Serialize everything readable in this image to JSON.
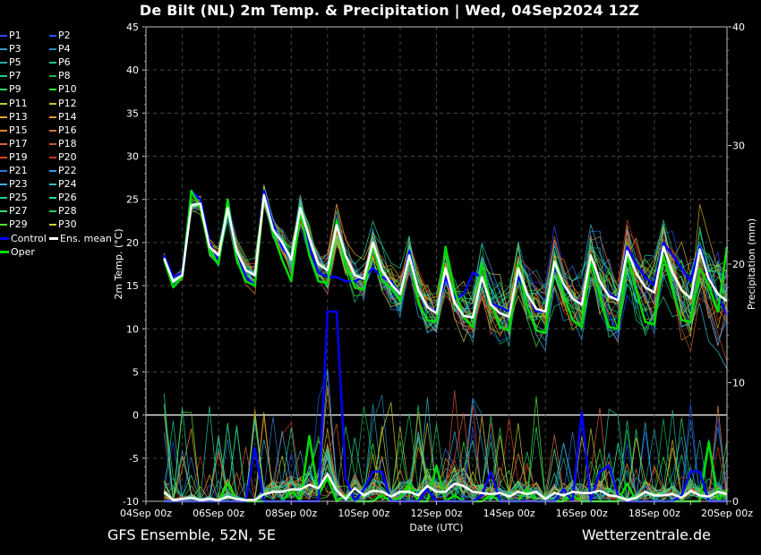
{
  "title": "De Bilt  (NL)  2m Temp. & Precipitation | Wed, 04Sep2024 12Z",
  "footer_left": "GFS Ensemble, 52N, 5E",
  "footer_right": "Wetterzentrale.de",
  "legend": [
    {
      "label": "P1",
      "color": "#3344ff"
    },
    {
      "label": "P2",
      "color": "#2255ff"
    },
    {
      "label": "P3",
      "color": "#3399cc"
    },
    {
      "label": "P4",
      "color": "#2288bb"
    },
    {
      "label": "P5",
      "color": "#22aaaa"
    },
    {
      "label": "P6",
      "color": "#22bb99"
    },
    {
      "label": "P7",
      "color": "#22cc88"
    },
    {
      "label": "P8",
      "color": "#11bb55"
    },
    {
      "label": "P9",
      "color": "#22dd66"
    },
    {
      "label": "P10",
      "color": "#33ee33"
    },
    {
      "label": "P11",
      "color": "#bbcc33"
    },
    {
      "label": "P12",
      "color": "#ccbb33"
    },
    {
      "label": "P13",
      "color": "#ddaa22"
    },
    {
      "label": "P14",
      "color": "#ee9922"
    },
    {
      "label": "P15",
      "color": "#dd8833"
    },
    {
      "label": "P16",
      "color": "#cc7744"
    },
    {
      "label": "P17",
      "color": "#dd6633"
    },
    {
      "label": "P18",
      "color": "#cc5533"
    },
    {
      "label": "P19",
      "color": "#dd4422"
    },
    {
      "label": "P20",
      "color": "#cc3322"
    },
    {
      "label": "P21",
      "color": "#3377dd"
    },
    {
      "label": "P22",
      "color": "#3399ee"
    },
    {
      "label": "P23",
      "color": "#44aadd"
    },
    {
      "label": "P24",
      "color": "#33bbcc"
    },
    {
      "label": "P25",
      "color": "#22ccaa"
    },
    {
      "label": "P26",
      "color": "#22dd99"
    },
    {
      "label": "P27",
      "color": "#33dd77"
    },
    {
      "label": "P28",
      "color": "#22cc55"
    },
    {
      "label": "P29",
      "color": "#55ee33"
    },
    {
      "label": "P30",
      "color": "#cccc33"
    },
    {
      "label": "Control",
      "color": "#0000ff"
    },
    {
      "label": "Ens. mean",
      "color": "#ffffff"
    },
    {
      "label": "Oper",
      "color": "#00dd00"
    }
  ],
  "chart_data": {
    "type": "line",
    "title": "De Bilt  (NL)  2m Temp. & Precipitation | Wed, 04Sep2024 12Z",
    "xlabel": "Date (UTC)",
    "ylabel": "2m Temp. (°C)",
    "y2label": "Precipitation (mm)",
    "ylim": [
      -10,
      45
    ],
    "y2lim": [
      0,
      40
    ],
    "yticks": [
      "45",
      "40",
      "35",
      "30",
      "25",
      "20",
      "15",
      "10",
      "5",
      "0",
      "-5",
      "-10"
    ],
    "y2ticks": [
      "40",
      "30",
      "20",
      "10",
      "0"
    ],
    "xticks": [
      "04Sep 00z",
      "06Sep 00z",
      "08Sep 00z",
      "10Sep 00z",
      "12Sep 00z",
      "14Sep 00z",
      "16Sep 00z",
      "18Sep 00z",
      "20Sep 00z"
    ],
    "x_start_hours": 0,
    "x_end_hours": 384,
    "grid": true,
    "ens_mean_temp": {
      "hours": [
        12,
        18,
        24,
        30,
        36,
        42,
        48,
        54,
        60,
        66,
        72,
        78,
        84,
        90,
        96,
        102,
        108,
        114,
        120,
        126,
        132,
        138,
        144,
        150,
        156,
        162,
        168,
        174,
        180,
        186,
        192,
        198,
        204,
        210,
        216,
        222,
        228,
        234,
        240,
        246,
        252,
        258,
        264,
        270,
        276,
        282,
        288,
        294,
        300,
        306,
        312,
        318,
        324,
        330,
        336,
        342,
        348,
        354,
        360,
        366,
        372,
        378,
        384
      ],
      "values": [
        18.2,
        15.5,
        16.2,
        24.3,
        24.5,
        19.5,
        18.5,
        24.0,
        19.0,
        16.8,
        16.2,
        25.5,
        21.5,
        20.0,
        18.0,
        24.0,
        20.5,
        17.5,
        16.8,
        22.0,
        18.5,
        16.2,
        15.8,
        20.0,
        16.8,
        15.2,
        14.0,
        18.5,
        14.5,
        12.5,
        11.8,
        17.0,
        13.0,
        11.5,
        11.3,
        16.0,
        12.8,
        11.8,
        11.4,
        17.0,
        14.0,
        12.3,
        12.0,
        17.8,
        15.2,
        13.5,
        12.8,
        18.5,
        15.5,
        13.8,
        13.3,
        19.0,
        16.5,
        14.8,
        14.2,
        19.5,
        16.5,
        14.5,
        13.5,
        19.2,
        15.8,
        14.0,
        13.2
      ]
    },
    "oper_temp": {
      "hours": [
        12,
        18,
        24,
        30,
        36,
        42,
        48,
        54,
        60,
        66,
        72,
        78,
        84,
        90,
        96,
        102,
        108,
        114,
        120,
        126,
        132,
        138,
        144,
        150,
        156,
        162,
        168,
        174,
        180,
        186,
        192,
        198,
        204,
        210,
        216,
        222,
        228,
        234,
        240,
        246,
        252,
        258,
        264,
        270,
        276,
        282,
        288,
        294,
        300,
        306,
        312,
        318,
        324,
        330,
        336,
        342,
        348,
        354,
        360,
        366,
        372,
        378,
        384
      ],
      "values": [
        18.0,
        14.8,
        16.0,
        26.0,
        24.0,
        19.0,
        17.5,
        25.0,
        18.0,
        15.5,
        15.0,
        25.5,
        21.0,
        18.0,
        15.5,
        23.5,
        18.5,
        15.5,
        15.3,
        22.5,
        17.5,
        14.8,
        14.5,
        19.8,
        15.5,
        14.8,
        13.2,
        18.5,
        13.0,
        11.0,
        10.8,
        19.5,
        14.5,
        11.3,
        10.2,
        17.5,
        13.0,
        10.2,
        9.8,
        17.5,
        12.5,
        9.8,
        9.5,
        17.8,
        14.0,
        11.0,
        10.2,
        18.0,
        13.8,
        10.2,
        10.0,
        18.5,
        14.5,
        10.8,
        10.5,
        18.5,
        14.5,
        11.0,
        10.8,
        17.0,
        15.0,
        12.0,
        19.5
      ]
    },
    "control_temp": {
      "hours": [
        12,
        18,
        24,
        30,
        36,
        42,
        48,
        54,
        60,
        66,
        72,
        78,
        84,
        90,
        96,
        102,
        108,
        114,
        120,
        126,
        132,
        138,
        144,
        150,
        156,
        162,
        168,
        174,
        180,
        186,
        192,
        198,
        204,
        210,
        216,
        222,
        228,
        234,
        240,
        246,
        252,
        258,
        264,
        270,
        276,
        282,
        288,
        294,
        300,
        306,
        312,
        318,
        324,
        330,
        336,
        342,
        348,
        354,
        360,
        366,
        372,
        378,
        384
      ],
      "values": [
        18.5,
        16.0,
        16.5,
        26.0,
        25.0,
        20.0,
        18.0,
        25.0,
        19.0,
        16.0,
        15.0,
        26.0,
        22.0,
        19.5,
        18.0,
        23.5,
        19.5,
        16.5,
        16.0,
        16.0,
        15.5,
        15.5,
        16.0,
        17.0,
        16.0,
        15.5,
        14.0,
        19.0,
        14.5,
        12.5,
        12.0,
        16.0,
        13.5,
        14.0,
        16.5,
        16.0,
        13.0,
        12.5,
        12.0,
        16.0,
        14.0,
        12.0,
        12.0,
        17.0,
        15.0,
        13.5,
        13.0,
        18.0,
        15.5,
        14.0,
        13.5,
        19.5,
        17.5,
        16.0,
        15.0,
        20.0,
        18.5,
        17.0,
        15.5,
        19.5,
        16.0,
        14.0,
        11.5
      ]
    },
    "ens_mean_precip": {
      "hours": [
        12,
        18,
        24,
        30,
        36,
        42,
        48,
        54,
        60,
        66,
        72,
        78,
        84,
        90,
        96,
        102,
        108,
        114,
        120,
        126,
        132,
        138,
        144,
        150,
        156,
        162,
        168,
        174,
        180,
        186,
        192,
        198,
        204,
        210,
        216,
        222,
        228,
        234,
        240,
        246,
        252,
        258,
        264,
        270,
        276,
        282,
        288,
        294,
        300,
        306,
        312,
        318,
        324,
        330,
        336,
        342,
        348,
        354,
        360,
        366,
        372,
        378,
        384
      ],
      "values": [
        0.8,
        0.1,
        0.2,
        0.3,
        0.1,
        0.2,
        0.1,
        0.4,
        0.2,
        0.1,
        0.1,
        0.6,
        0.8,
        0.8,
        1.0,
        1.0,
        1.4,
        1.1,
        2.3,
        0.9,
        0.2,
        1.1,
        0.5,
        0.9,
        0.8,
        0.4,
        0.8,
        0.8,
        0.5,
        1.3,
        0.8,
        0.8,
        1.5,
        1.3,
        0.8,
        0.7,
        0.6,
        0.7,
        0.4,
        0.8,
        0.6,
        0.8,
        0.2,
        0.7,
        0.5,
        0.8,
        0.7,
        0.7,
        0.9,
        0.5,
        0.4,
        0.1,
        0.3,
        0.8,
        0.5,
        0.5,
        0.6,
        0.3,
        0.9,
        0.5,
        0.4,
        0.8,
        0.6
      ]
    },
    "oper_precip": {
      "hours": [
        12,
        18,
        24,
        30,
        36,
        42,
        48,
        54,
        60,
        66,
        72,
        78,
        84,
        90,
        96,
        102,
        108,
        114,
        120,
        126,
        132,
        138,
        144,
        150,
        156,
        162,
        168,
        174,
        180,
        186,
        192,
        198,
        204,
        210,
        216,
        222,
        228,
        234,
        240,
        246,
        252,
        258,
        264,
        270,
        276,
        282,
        288,
        294,
        300,
        306,
        312,
        318,
        324,
        330,
        336,
        342,
        348,
        354,
        360,
        366,
        372,
        378,
        384
      ],
      "values": [
        0.0,
        0.0,
        0.0,
        0.0,
        0.0,
        0.0,
        0.0,
        1.5,
        0.0,
        0.0,
        0.0,
        0.0,
        0.0,
        0.0,
        1.0,
        0.0,
        5.5,
        0.5,
        2.0,
        0.0,
        0.5,
        0.0,
        0.0,
        0.0,
        0.5,
        0.0,
        0.3,
        1.5,
        0.0,
        0.0,
        3.0,
        0.0,
        0.5,
        0.0,
        0.0,
        0.0,
        0.5,
        0.0,
        0.0,
        0.0,
        1.0,
        0.0,
        0.0,
        0.0,
        0.0,
        0.5,
        0.0,
        0.0,
        0.0,
        0.0,
        0.0,
        1.5,
        0.0,
        0.0,
        0.0,
        0.0,
        0.0,
        0.0,
        0.0,
        0.0,
        5.0,
        0.0,
        1.0
      ]
    },
    "control_precip": {
      "hours": [
        12,
        18,
        24,
        30,
        36,
        42,
        48,
        54,
        60,
        66,
        72,
        78,
        84,
        90,
        96,
        102,
        108,
        114,
        120,
        126,
        132,
        138,
        144,
        150,
        156,
        162,
        168,
        174,
        180,
        186,
        192,
        198,
        204,
        210,
        216,
        222,
        228,
        234,
        240,
        246,
        252,
        258,
        264,
        270,
        276,
        282,
        288,
        294,
        300,
        306,
        312,
        318,
        324,
        330,
        336,
        342,
        348,
        354,
        360,
        366,
        372,
        378,
        384
      ],
      "values": [
        0.0,
        0.0,
        0.0,
        0.0,
        0.0,
        0.0,
        0.0,
        0.0,
        0.0,
        0.0,
        4.5,
        0.0,
        0.0,
        0.0,
        0.0,
        0.0,
        0.0,
        0.0,
        16.0,
        16.0,
        2.0,
        0.0,
        1.0,
        2.5,
        2.5,
        0.0,
        0.0,
        0.0,
        0.0,
        1.0,
        0.0,
        0.0,
        0.0,
        0.0,
        0.0,
        0.5,
        2.5,
        0.0,
        0.0,
        0.0,
        0.0,
        0.0,
        0.0,
        0.0,
        1.0,
        0.0,
        7.5,
        0.0,
        2.5,
        3.0,
        0.5,
        0.0,
        0.0,
        0.0,
        0.0,
        0.0,
        0.0,
        0.5,
        2.5,
        2.5,
        0.0,
        0.0,
        0.0
      ]
    }
  }
}
